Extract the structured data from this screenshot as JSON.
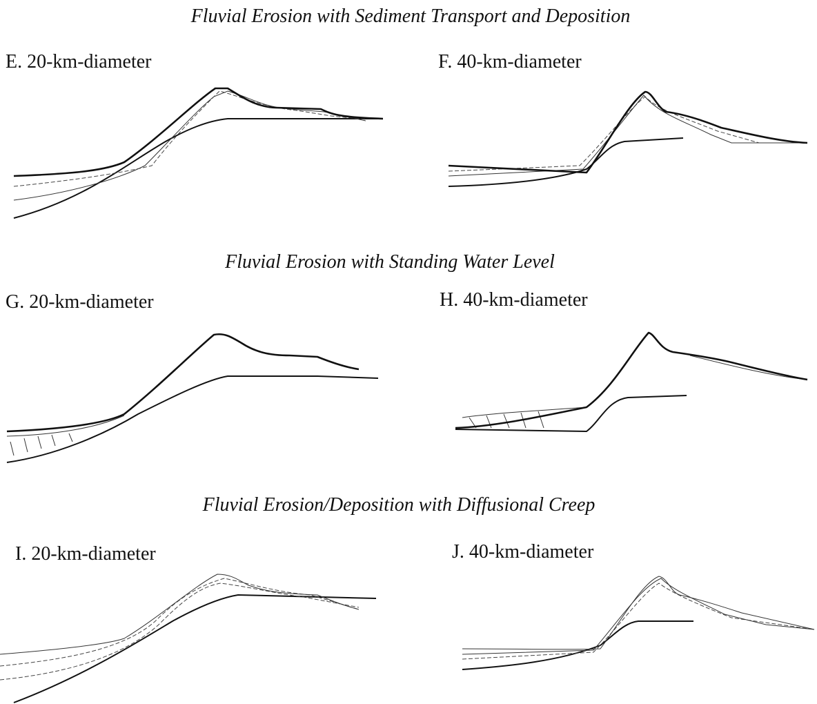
{
  "sections": [
    {
      "title": "Fluvial Erosion with Sediment Transport and Deposition",
      "panels": [
        {
          "label": "E.  20-km-diameter"
        },
        {
          "label": "F.  40-km-diameter"
        }
      ]
    },
    {
      "title": "Fluvial Erosion with Standing Water Level",
      "panels": [
        {
          "label": "G.  20-km-diameter"
        },
        {
          "label": "H.  40-km-diameter"
        }
      ]
    },
    {
      "title": "Fluvial Erosion/Deposition with Diffusional Creep",
      "panels": [
        {
          "label": "I.  20-km-diameter"
        },
        {
          "label": "J.  40-km-diameter"
        }
      ]
    }
  ]
}
